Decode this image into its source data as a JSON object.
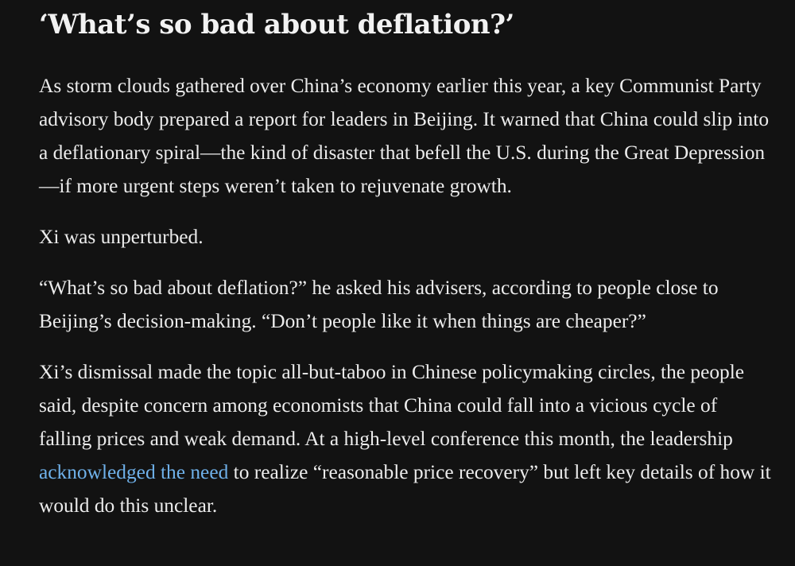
{
  "article": {
    "headline": "‘What’s so bad about deflation?’",
    "paragraphs": [
      "As storm clouds gathered over China’s economy earlier this year, a key Communist Party advisory body prepared a report for leaders in Beijing. It warned that China could slip into a deflationary spiral—the kind of disaster that befell the U.S. during the Great Depression—if more urgent steps weren’t taken to rejuvenate growth.",
      "Xi was unperturbed.",
      "“What’s so bad about deflation?” he asked his advisers, according to people close to Beijing’s decision-making. “Don’t people like it when things are cheaper?”"
    ],
    "last_paragraph": {
      "before_link": "Xi’s dismissal made the topic all-but-taboo in Chinese policymaking circles, the people said, despite concern among economists that China could fall into a vicious cycle of falling prices and weak demand. At a high-level conference this month, the leadership ",
      "link_text": "acknowledged the need",
      "after_link": " to realize “reasonable price recovery” but left key details of how it would do this unclear."
    }
  },
  "colors": {
    "background": "#121212",
    "text": "#ececec",
    "link": "#6fb1ea"
  }
}
